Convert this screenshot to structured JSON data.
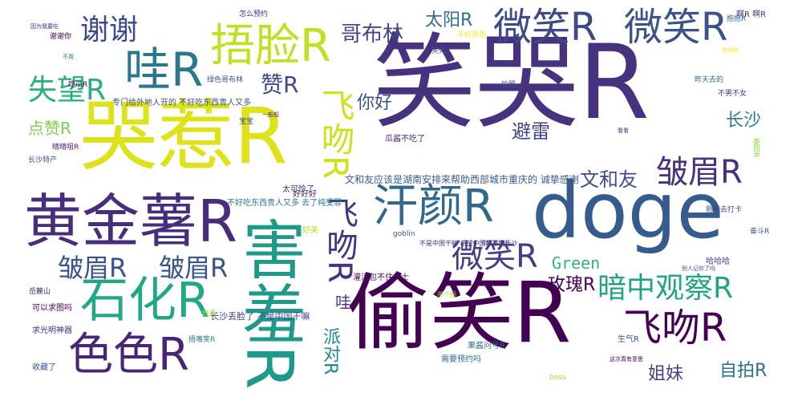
{
  "colors": {
    "background": "#ffffff",
    "palette": [
      "#440154",
      "#46327e",
      "#365c8d",
      "#277f8e",
      "#1fa187",
      "#4ac16d",
      "#a0da39",
      "#fde725"
    ]
  },
  "words": [
    {
      "text": "笑哭R",
      "color": "#46327e"
    },
    {
      "text": "doge",
      "color": "#365c8d"
    },
    {
      "text": "偷笑R",
      "color": "#440154"
    },
    {
      "text": "哭惹R",
      "color": "#dde318"
    },
    {
      "text": "黄金薯R",
      "color": "#472d7b"
    },
    {
      "text": "害羞R",
      "color": "#1f9a8a"
    },
    {
      "text": "捂脸R",
      "color": "#c2df23"
    },
    {
      "text": "哇R",
      "color": "#2a788e"
    },
    {
      "text": "微笑R",
      "color": "#3e4989"
    },
    {
      "text": "微笑R",
      "color": "#3b528b"
    },
    {
      "text": "汗颜R",
      "color": "#31688e"
    },
    {
      "text": "石化R",
      "color": "#22a884"
    },
    {
      "text": "色色R",
      "color": "#482576"
    },
    {
      "text": "飞吻R",
      "color": "#cde11d"
    },
    {
      "text": "飞吻R",
      "color": "#46337f"
    },
    {
      "text": "飞吻R",
      "color": "#440154"
    },
    {
      "text": "皱眉R",
      "color": "#46327e"
    },
    {
      "text": "皱眉R",
      "color": "#3b528b"
    },
    {
      "text": "皱眉R",
      "color": "#39558c"
    },
    {
      "text": "微笑R",
      "color": "#433e85"
    },
    {
      "text": "暗中观察R",
      "color": "#20a486"
    },
    {
      "text": "失望R",
      "color": "#29af7f"
    },
    {
      "text": "谢谢",
      "color": "#3e4989"
    },
    {
      "text": "哥布林",
      "color": "#404688"
    },
    {
      "text": "太阳R",
      "color": "#2d708e"
    },
    {
      "text": "赞R",
      "color": "#3f4788"
    },
    {
      "text": "你好",
      "color": "#3b528b"
    },
    {
      "text": "避雷",
      "color": "#414487"
    },
    {
      "text": "文和友",
      "color": "#3e4c8a"
    },
    {
      "text": "长沙",
      "color": "#287c8e"
    },
    {
      "text": "点赞R",
      "color": "#7ad151"
    },
    {
      "text": "玫瑰R",
      "color": "#440154"
    },
    {
      "text": "Green",
      "color": "#31b57b"
    },
    {
      "text": "派对R",
      "color": "#24868e"
    },
    {
      "text": "哇",
      "color": "#453781"
    },
    {
      "text": "自拍R",
      "color": "#2c728e"
    },
    {
      "text": "姐妹",
      "color": "#433e85"
    },
    {
      "text": "文和友应该是湖南安排来帮助西部城市重庆的  诚挚感谢",
      "color": "#365c8d"
    },
    {
      "text": "不好吃东西贵人又多  去了纯受罪",
      "color": "#2a788e"
    },
    {
      "text": "长沙丢脸了  不是中国干嘛",
      "color": "#3e4989"
    },
    {
      "text": "专门给外地人开的  不好吃东西贵人又多",
      "color": "#3b528b"
    },
    {
      "text": "不是中国干嘛  希望中国都不去长沙",
      "color": "#472a7a"
    },
    {
      "text": "瓜酱不吃了",
      "color": "#481d6f"
    },
    {
      "text": "果酱问号R",
      "color": "#30697e"
    },
    {
      "text": "可以求图吗",
      "color": "#440154"
    },
    {
      "text": "求光明神器",
      "color": "#46327e"
    },
    {
      "text": "收藏了",
      "color": "#3b528b"
    },
    {
      "text": "需要预约吗",
      "color": "#31688e"
    },
    {
      "text": "岳麓山",
      "color": "#482878"
    },
    {
      "text": "好好好",
      "color": "#482173"
    },
    {
      "text": "太可怜了",
      "color": "#46307e"
    },
    {
      "text": "好美",
      "color": "#b5de2b"
    },
    {
      "text": "goblin",
      "color": "#365c8d"
    },
    {
      "text": "灌汤包不住女士",
      "color": "#440154"
    },
    {
      "text": "哈哈哈",
      "color": "#433e85"
    },
    {
      "text": "捂嘴笑R",
      "color": "#2a788e"
    },
    {
      "text": "生气R",
      "color": "#3b528b"
    },
    {
      "text": "好看",
      "color": "#a0da39"
    },
    {
      "text": "怎么预约",
      "color": "#46327e"
    },
    {
      "text": "吃瓜R",
      "color": "#440154"
    },
    {
      "text": "抱抱R",
      "color": "#31688e"
    },
    {
      "text": "宝宝",
      "color": "#3e4989"
    },
    {
      "text": "长沙特产",
      "color": "#3b528b"
    },
    {
      "text": "晴晴咀R",
      "color": "#481f70"
    },
    {
      "text": "绿色哥布林",
      "color": "#3b528b"
    },
    {
      "text": "不男不女",
      "color": "#46327e"
    },
    {
      "text": "昨天去的",
      "color": "#30697e"
    },
    {
      "text": "刚刚去打卡",
      "color": "#3e4989"
    },
    {
      "text": "拍照",
      "color": "#3b528b"
    },
    {
      "text": "不好意思",
      "color": "#fde725"
    },
    {
      "text": "笑死",
      "color": "#3b528b"
    },
    {
      "text": "谢谢你",
      "color": "#440154"
    },
    {
      "text": "啊R 啊R",
      "color": "#46327e"
    },
    {
      "text": "boss",
      "color": "#a0da39"
    },
    {
      "text": "奋斗R",
      "color": "#3b528b"
    },
    {
      "text": "委屈R",
      "color": "#8fd744"
    },
    {
      "text": "因为我要吃",
      "color": "#472d7b"
    },
    {
      "text": "不用",
      "color": "#31688e"
    },
    {
      "text": "看看",
      "color": "#46327e"
    },
    {
      "text": "你是魔鬼吗",
      "color": "#3e4989"
    },
    {
      "text": "别人记你了吗",
      "color": "#3b528b"
    },
    {
      "text": "一般般",
      "color": "#46327e"
    },
    {
      "text": "求攻略",
      "color": "#fde725"
    },
    {
      "text": "带个图",
      "color": "#a0da39"
    },
    {
      "text": "这次真有意思",
      "color": "#440154"
    }
  ]
}
